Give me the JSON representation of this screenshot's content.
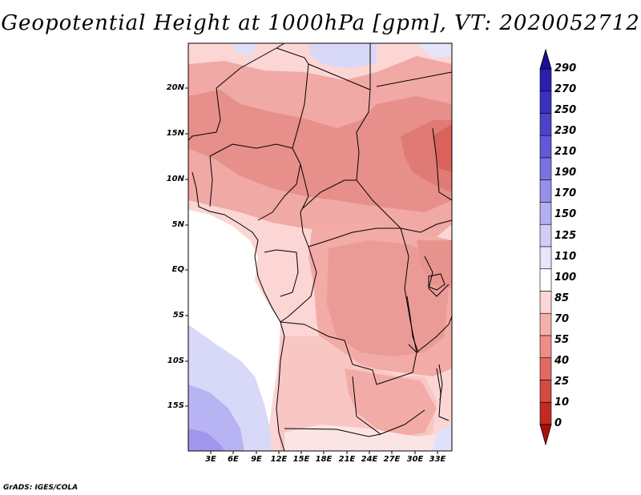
{
  "title": "Geopotential Height at 1000hPa [gpm], VT: 2020052712",
  "footer": "GrADS: IGES/COLA",
  "map": {
    "lat_ticks": [
      "20N",
      "15N",
      "10N",
      "5N",
      "EQ",
      "5S",
      "10S",
      "15S"
    ],
    "lon_ticks": [
      "3E",
      "6E",
      "9E",
      "12E",
      "15E",
      "18E",
      "21E",
      "24E",
      "27E",
      "30E",
      "33E"
    ],
    "lat_range": [
      -20,
      25
    ],
    "lon_range": [
      0,
      35
    ]
  },
  "colorbar": {
    "labels": [
      "290",
      "270",
      "250",
      "230",
      "210",
      "190",
      "170",
      "150",
      "125",
      "110",
      "100",
      "85",
      "70",
      "55",
      "40",
      "25",
      "10",
      "0"
    ],
    "colors": [
      "#1a0f96",
      "#2a1fae",
      "#3a30c0",
      "#4c43cc",
      "#6159d8",
      "#7a72e2",
      "#9790ea",
      "#b3aff0",
      "#d0cef6",
      "#e6e6fa",
      "#ffffff",
      "#fcd6d4",
      "#f6b0ac",
      "#ee8d88",
      "#e26a63",
      "#d44a42",
      "#c22a22",
      "#a9100b"
    ]
  }
}
